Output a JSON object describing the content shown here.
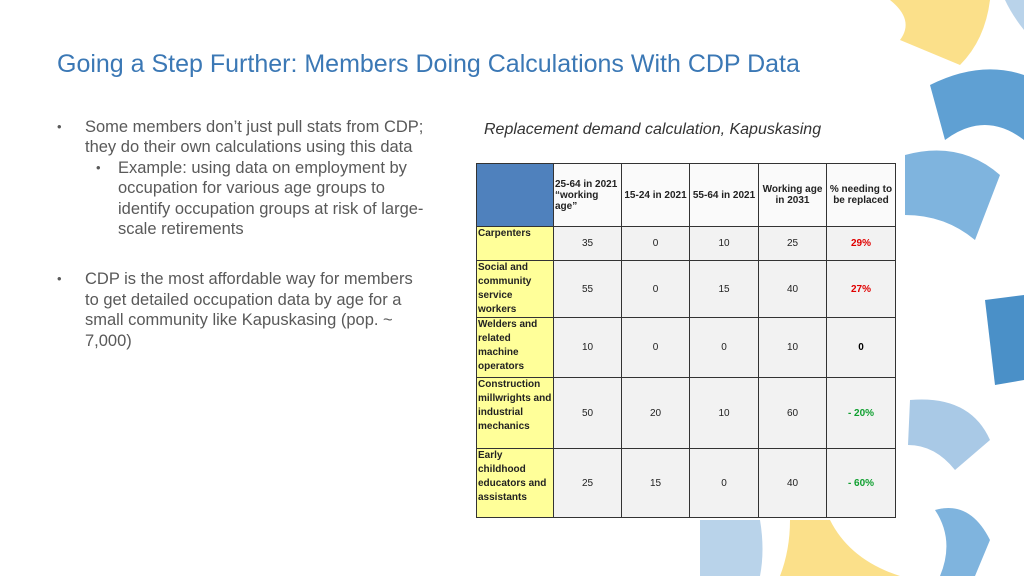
{
  "title": "Going a Step Further: Members Doing Calculations With CDP Data",
  "bullets": [
    {
      "text": "Some members don’t just pull stats from CDP; they do their own calculations using this data",
      "sub": [
        "Example: using data on employment by occupation for various age groups to identify occupation groups at risk of large-scale retirements"
      ]
    },
    {
      "text": "CDP is the most affordable way for members to get detailed occupation data by age for a small community like Kapuskasing (pop. ~ 7,000)"
    }
  ],
  "table": {
    "caption": "Replacement demand calculation, Kapuskasing",
    "header": [
      "",
      "25-64 in 2021 “working age”",
      "15-24 in 2021",
      "55-64 in 2021",
      "Working age in 2031",
      "% needing to be replaced"
    ],
    "rows": [
      [
        "Carpenters",
        "35",
        "0",
        "10",
        "25",
        "29%"
      ],
      [
        "Social and community service workers",
        "55",
        "0",
        "15",
        "40",
        "27%"
      ],
      [
        "Welders and related machine operators",
        "10",
        "0",
        "0",
        "10",
        "0"
      ],
      [
        "Construction millwrights and industrial mechanics",
        "50",
        "20",
        "10",
        "60",
        "- 20%"
      ],
      [
        "Early childhood educators and assistants",
        "25",
        "15",
        "0",
        "40",
        "- 60%"
      ]
    ]
  }
}
